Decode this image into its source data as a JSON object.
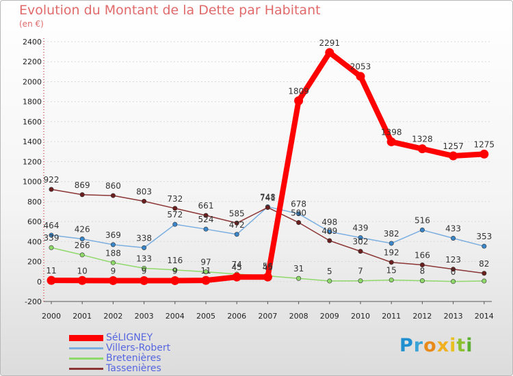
{
  "title": "Evolution du Montant de la Dette par Habitant",
  "subtitle": "(en €)",
  "logo_text": "Proxiti",
  "chart_data": {
    "type": "line",
    "ylim": [
      -200,
      2400
    ],
    "yticks": [
      -200,
      0,
      200,
      400,
      600,
      800,
      1000,
      1200,
      1400,
      1600,
      1800,
      2000,
      2200,
      2400
    ],
    "categories": [
      "2000",
      "2001",
      "2002",
      "2003",
      "2004",
      "2005",
      "2006",
      "2007",
      "2008",
      "2009",
      "2010",
      "2011",
      "2012",
      "2013",
      "2014"
    ],
    "series": [
      {
        "name": "Bretenières",
        "color": "#8fd86a",
        "line": "#8fd86a",
        "width": 1.5,
        "radius": 3.2,
        "values": [
          339,
          266,
          188,
          133,
          116,
          97,
          74,
          56,
          31,
          5,
          7,
          15,
          8,
          0,
          5
        ],
        "labels": [
          "339",
          "266",
          "188",
          "133",
          "116",
          "97",
          "74",
          "56",
          "31",
          "5",
          "7",
          "15",
          "8",
          "0",
          ""
        ]
      },
      {
        "name": "Villers-Robert",
        "color": "#3a86c8",
        "line": "#7aaee0",
        "width": 1.5,
        "radius": 3.2,
        "values": [
          464,
          426,
          369,
          338,
          572,
          524,
          472,
          748,
          678,
          498,
          439,
          382,
          516,
          433,
          353
        ],
        "labels": [
          "464",
          "426",
          "369",
          "338",
          "572",
          "524",
          "472",
          "748",
          "678",
          "498",
          "439",
          "382",
          "516",
          "433",
          "353"
        ]
      },
      {
        "name": "Tassenières",
        "color": "#6b1f1f",
        "line": "#8a3434",
        "width": 1.5,
        "radius": 3.2,
        "values": [
          922,
          869,
          860,
          803,
          732,
          661,
          585,
          741,
          590,
          409,
          302,
          192,
          166,
          123,
          82
        ],
        "labels": [
          "922",
          "869",
          "860",
          "803",
          "732",
          "661",
          "585",
          "741",
          "590",
          "409",
          "302",
          "192",
          "166",
          "123",
          "82"
        ]
      },
      {
        "name": "SéLIGNEY",
        "color": "#ff0000",
        "line": "#ff0000",
        "width": 8,
        "radius": 6.5,
        "values": [
          11,
          10,
          9,
          9,
          9,
          11,
          45,
          45,
          1809,
          2291,
          2053,
          1398,
          1328,
          1257,
          1275
        ],
        "labels": [
          "11",
          "10",
          "9",
          "9",
          "9",
          "11",
          "45",
          "45",
          "1809",
          "2291",
          "2053",
          "1398",
          "1328",
          "1257",
          "1275"
        ]
      }
    ],
    "legend": [
      "SéLIGNEY",
      "Villers-Robert",
      "Bretenières",
      "Tassenières"
    ]
  }
}
